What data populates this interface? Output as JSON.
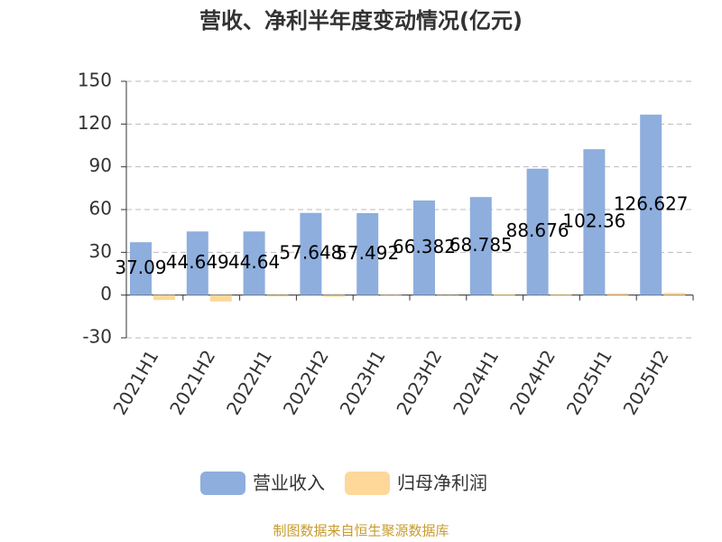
{
  "chart_data": {
    "type": "bar",
    "title": "营收、净利半年度变动情况(亿元)",
    "categories": [
      "2021H1",
      "2021H2",
      "2022H1",
      "2022H2",
      "2023H1",
      "2023H2",
      "2024H1",
      "2024H2",
      "2025H1",
      "2025H2"
    ],
    "series": [
      {
        "name": "营业收入",
        "color": "#8eaedd",
        "values": [
          37.09,
          44.649,
          44.64,
          57.648,
          57.492,
          66.382,
          68.785,
          88.676,
          102.36,
          126.627
        ],
        "show_labels": true
      },
      {
        "name": "归母净利润",
        "color": "#fdd899",
        "values": [
          -3.5,
          -4.5,
          -1,
          -1.2,
          0.3,
          0.2,
          0.5,
          0.6,
          1.2,
          1.5
        ],
        "show_labels": false
      }
    ],
    "ylim": [
      -30,
      150
    ],
    "yticks": [
      -30,
      0,
      30,
      60,
      90,
      120,
      150
    ],
    "grid": true,
    "legend": "bottom",
    "source": "制图数据来自恒生聚源数据库"
  }
}
